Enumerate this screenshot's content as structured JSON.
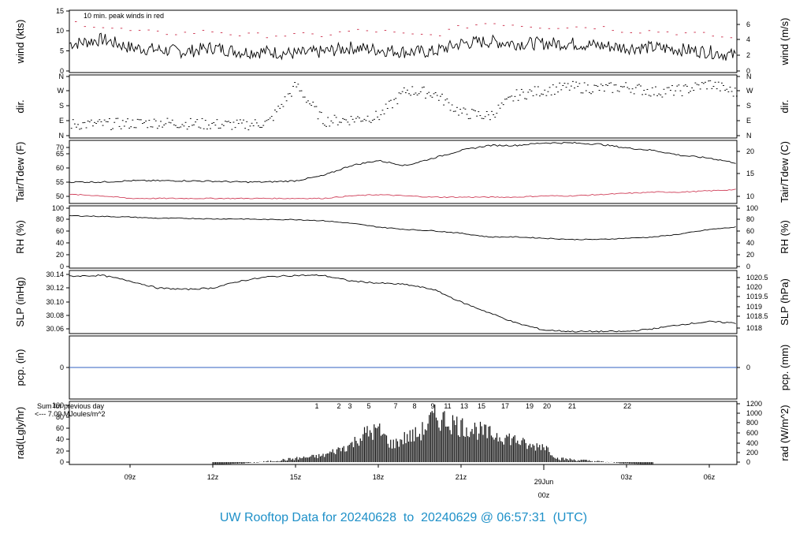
{
  "footer_title": "UW Rooftop Data for 20240628  to  20240629 @ 06:57:31  (UTC)",
  "date_marker": {
    "day": "29Jun",
    "hour": "00z"
  },
  "colors": {
    "line": "#000000",
    "peak": "#d0405a",
    "dew": "#d0405a",
    "pcp": "#3060c0",
    "accent": "#a020f0",
    "title": "#1e90c8"
  },
  "chart_data": {
    "type": "line",
    "x_axis": {
      "ticks": [
        "09z",
        "12z",
        "15z",
        "18z",
        "21z",
        "03z",
        "06z"
      ],
      "range_hours": [
        6.8,
        31.0
      ]
    },
    "panels": [
      {
        "id": "wind",
        "ylabel_left": "wind (kts)",
        "ylabel_right": "wind (m/s)",
        "ylim": [
          0,
          15
        ],
        "left_ticks": [
          "0",
          "5",
          "10",
          "15"
        ],
        "right_ticks": [
          "0",
          "2",
          "4",
          "6"
        ],
        "annotation": "10 min. peak winds in red",
        "series": [
          {
            "name": "wind",
            "x": [
              7,
              8,
              9,
              10,
              11,
              12,
              13,
              14,
              15,
              16,
              17,
              18,
              19,
              20,
              21,
              22,
              23,
              24,
              25,
              26,
              27,
              28,
              29,
              30,
              31
            ],
            "y": [
              7,
              8,
              6,
              5.5,
              5,
              6,
              5,
              5,
              4.5,
              5,
              6,
              5.5,
              5,
              5,
              7,
              7.5,
              7,
              7,
              7,
              6.5,
              6,
              6,
              5.5,
              5,
              4
            ]
          },
          {
            "name": "peak",
            "y": [
              12,
              11,
              10,
              9.5,
              9.5,
              10,
              9,
              9,
              9,
              9,
              10,
              10,
              9,
              9,
              11,
              12,
              11.5,
              11,
              11,
              11,
              10,
              10,
              9.5,
              9,
              8
            ]
          }
        ]
      },
      {
        "id": "dir",
        "ylabel_left": "dir.",
        "ylabel_right": "dir.",
        "left_ticks": [
          "N",
          "E",
          "S",
          "W",
          "N"
        ],
        "right_ticks": [
          "N",
          "E",
          "S",
          "W",
          "N"
        ],
        "series": [
          {
            "name": "direction",
            "x": [
              7,
              8,
              9,
              10,
              11,
              12,
              13,
              14,
              15,
              16,
              17,
              18,
              19,
              20,
              21,
              22,
              23,
              24,
              25,
              26,
              27,
              28,
              29,
              30,
              31
            ],
            "y": [
              70,
              70,
              75,
              80,
              75,
              70,
              65,
              80,
              310,
              90,
              100,
              120,
              280,
              260,
              140,
              120,
              250,
              280,
              300,
              290,
              300,
              270,
              280,
              320,
              260
            ]
          }
        ]
      },
      {
        "id": "temp",
        "ylabel_left": "Tair/Tdew (F)",
        "ylabel_right": "Tair/Tdew (C)",
        "ylim": [
          47,
          72
        ],
        "left_ticks": [
          "50",
          "55",
          "60",
          "65",
          "70"
        ],
        "right_ticks": [
          "10",
          "15",
          "20"
        ],
        "series": [
          {
            "name": "Tair",
            "x": [
              7,
              8,
              9,
              10,
              11,
              12,
              13,
              14,
              15,
              16,
              17,
              18,
              19,
              20,
              21,
              22,
              23,
              24,
              25,
              26,
              27,
              28,
              29,
              30,
              31
            ],
            "y": [
              55.5,
              55.5,
              56,
              56,
              56,
              55.8,
              55.5,
              55.5,
              56,
              58,
              62,
              64,
              62,
              65,
              68,
              70,
              70,
              71,
              71,
              70.5,
              69,
              68,
              66,
              65,
              63
            ]
          },
          {
            "name": "Tdew",
            "y": [
              50.5,
              50,
              49,
              49,
              49,
              49,
              49,
              49,
              49,
              49,
              50,
              50.5,
              50,
              49.5,
              49.5,
              49.5,
              49.5,
              50,
              50,
              50.5,
              51,
              51.5,
              51.5,
              52,
              52.5
            ]
          }
        ]
      },
      {
        "id": "rh",
        "ylabel_left": "RH (%)",
        "ylabel_right": "RH (%)",
        "ylim": [
          0,
          100
        ],
        "left_ticks": [
          "0",
          "20",
          "40",
          "60",
          "80",
          "100"
        ],
        "right_ticks": [
          "0",
          "20",
          "40",
          "60",
          "80",
          "100"
        ],
        "series": [
          {
            "name": "RH",
            "x": [
              7,
              8,
              9,
              10,
              11,
              12,
              13,
              14,
              15,
              16,
              17,
              18,
              19,
              20,
              21,
              22,
              23,
              24,
              25,
              26,
              27,
              28,
              29,
              30,
              31
            ],
            "y": [
              84,
              83,
              82,
              80,
              80,
              79,
              79,
              78,
              78,
              76,
              72,
              66,
              62,
              60,
              56,
              50,
              50,
              48,
              46,
              46,
              48,
              50,
              55,
              62,
              66
            ]
          }
        ]
      },
      {
        "id": "slp",
        "ylabel_left": "SLP (inHg)",
        "ylabel_right": "SLP (hPa)",
        "ylim": [
          30.055,
          30.145
        ],
        "left_ticks": [
          "30.06",
          "30.08",
          "30.10",
          "30.12",
          "30.14"
        ],
        "right_ticks": [
          "1018",
          "1018.5",
          "1019",
          "1019.5",
          "1020",
          "1020.5"
        ],
        "series": [
          {
            "name": "SLP",
            "x": [
              7,
              8,
              9,
              10,
              11,
              12,
              13,
              14,
              15,
              16,
              17,
              18,
              19,
              20,
              21,
              22,
              23,
              24,
              25,
              26,
              27,
              28,
              29,
              30,
              31
            ],
            "y": [
              30.137,
              30.138,
              30.13,
              30.12,
              30.118,
              30.12,
              30.13,
              30.136,
              30.138,
              30.138,
              30.13,
              30.127,
              30.125,
              30.118,
              30.1,
              30.085,
              30.07,
              30.06,
              30.058,
              30.058,
              30.058,
              30.062,
              30.068,
              30.072,
              30.07
            ]
          }
        ]
      },
      {
        "id": "pcp",
        "ylabel_left": "pcp. (in)",
        "ylabel_right": "pcp. (mm)",
        "left_ticks": [
          "0"
        ],
        "right_ticks": [
          "0"
        ],
        "series": [
          {
            "name": "pcp",
            "y": [
              0
            ]
          }
        ]
      },
      {
        "id": "rad",
        "ylabel_left": "rad(Lgly/hr)",
        "ylabel_right": "rad (W/m^2)",
        "ylim": [
          0,
          100
        ],
        "left_ticks": [
          "0",
          "20",
          "40",
          "60",
          "80",
          "100"
        ],
        "right_ticks": [
          "0",
          "200",
          "400",
          "600",
          "800",
          "1000",
          "1200"
        ],
        "annotation_line1": "Sum for previous day",
        "annotation_line2": "<--- 7.09 MJoules/m^2",
        "top_numbers": [
          "1",
          "2",
          "3",
          "5",
          "7",
          "8",
          "9",
          "11",
          "13",
          "15",
          "17",
          "19",
          "20",
          "21",
          "22"
        ],
        "series": [
          {
            "name": "radiation",
            "x": [
              12,
              13,
              14,
              15,
              16,
              17,
              17.5,
              18,
              18.5,
              19,
              19.5,
              20,
              20.5,
              21,
              21.5,
              22,
              22.5,
              23,
              23.5,
              24,
              24.5,
              25,
              26,
              27,
              28
            ],
            "y": [
              0,
              2,
              6,
              12,
              18,
              40,
              62,
              70,
              40,
              55,
              62,
              96,
              90,
              78,
              72,
              62,
              58,
              50,
              36,
              40,
              12,
              10,
              6,
              2,
              0
            ]
          }
        ]
      }
    ]
  }
}
